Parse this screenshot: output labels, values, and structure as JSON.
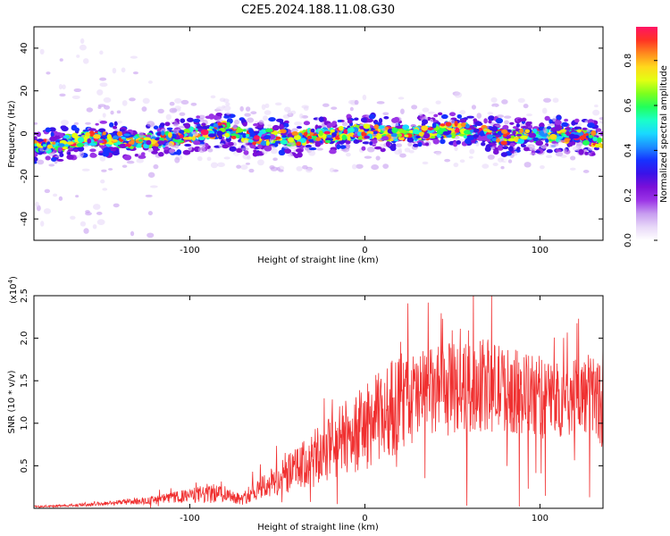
{
  "title": "C2E5.2024.188.11.08.G30",
  "chart_data": [
    {
      "type": "heatmap",
      "xlabel": "Height of straight line (km)",
      "ylabel": "Frequency (Hz)",
      "xlim": [
        -189,
        136
      ],
      "ylim": [
        -50,
        50
      ],
      "xticks": [
        -100,
        0,
        100
      ],
      "yticks": [
        -40,
        -20,
        0,
        20,
        40
      ],
      "colorbar": {
        "label": "Normalized spectral amplitude",
        "ticks": [
          0.0,
          0.2,
          0.4,
          0.6,
          0.8
        ],
        "range": [
          0,
          0.95
        ],
        "colors": [
          "#ffffff",
          "#e8d8f8",
          "#c79cf0",
          "#9b34e6",
          "#7a10d8",
          "#3a12e8",
          "#1632ff",
          "#1c8cff",
          "#19d9ff",
          "#1affc8",
          "#22ff5a",
          "#7dff1e",
          "#e3ff12",
          "#ffd81c",
          "#ff8a1e",
          "#ff3324",
          "#ff1464"
        ]
      },
      "ridge": {
        "x": [
          -189,
          -175,
          -160,
          -150,
          -140,
          -130,
          -120,
          -110,
          -100,
          -90,
          -80,
          -70,
          -60,
          -50,
          -40,
          -30,
          -20,
          -10,
          0,
          10,
          20,
          30,
          40,
          50,
          60,
          70,
          80,
          90,
          100,
          110,
          120,
          130,
          136
        ],
        "frequency": [
          -6,
          -5,
          -3,
          -2,
          -3,
          -4,
          -3,
          -2,
          -1,
          1,
          2,
          -1,
          -2,
          -1,
          -3,
          -1,
          -1,
          0,
          1,
          0,
          0,
          0,
          1,
          2,
          1,
          0,
          -2,
          -1,
          -1,
          0,
          -1,
          -2,
          -5
        ]
      }
    },
    {
      "type": "line",
      "xlabel": "Height of straight line (km)",
      "ylabel": "SNR (10 * v/v)",
      "y_multiplier": "(x10",
      "y_multiplier_exp": "4",
      "y_multiplier_close": ")",
      "xlim": [
        -189,
        136
      ],
      "ylim": [
        0,
        2.5
      ],
      "xticks": [
        -100,
        0,
        100
      ],
      "yticks": [
        0.5,
        1.0,
        1.5,
        2.0,
        2.5
      ],
      "line_color": "#f03030",
      "series": [
        {
          "x": [
            -189,
            -160,
            -140,
            -120,
            -100,
            -90,
            -80,
            -70,
            -60,
            -50,
            -40,
            -30,
            -20,
            -10,
            0,
            10,
            20,
            30,
            40,
            50,
            60,
            70,
            80,
            90,
            100,
            110,
            120,
            130,
            136
          ],
          "mean": [
            0.02,
            0.04,
            0.07,
            0.1,
            0.15,
            0.17,
            0.18,
            0.1,
            0.25,
            0.32,
            0.45,
            0.55,
            0.7,
            0.85,
            0.95,
            1.1,
            1.25,
            1.3,
            1.35,
            1.4,
            1.42,
            1.45,
            1.4,
            1.35,
            1.3,
            1.28,
            1.3,
            1.35,
            1.2
          ],
          "spread": [
            0.01,
            0.02,
            0.03,
            0.05,
            0.08,
            0.12,
            0.1,
            0.06,
            0.15,
            0.2,
            0.25,
            0.35,
            0.4,
            0.45,
            0.5,
            0.55,
            0.6,
            0.55,
            0.55,
            0.55,
            0.55,
            0.55,
            0.5,
            0.5,
            0.5,
            0.45,
            0.45,
            0.5,
            0.5
          ]
        }
      ]
    }
  ]
}
